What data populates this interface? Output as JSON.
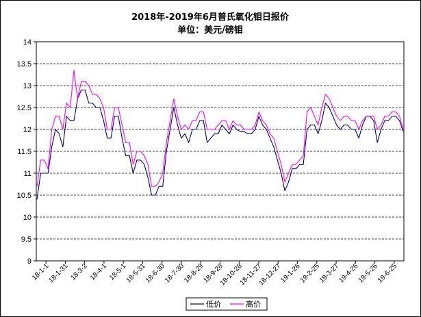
{
  "chart_data": {
    "type": "line",
    "title": "2018年-2019年6月普氏氧化钼日报价",
    "subtitle": "单位：美元/磅钼",
    "ylim": [
      9,
      14
    ],
    "yticks": [
      9,
      9.5,
      10,
      10.5,
      11,
      11.5,
      12,
      12.5,
      13,
      13.5,
      14
    ],
    "xtick_labels": [
      "18-1-1",
      "18-1-31",
      "18-3-2",
      "18-4-1",
      "18-5-1",
      "18-5-31",
      "18-6-30",
      "18-7-30",
      "18-8-29",
      "18-9-28",
      "18-10-28",
      "18-11-27",
      "18-12-27",
      "19-1-26",
      "19-2-25",
      "19-3-27",
      "19-4-26",
      "19-5-26",
      "19-6-25"
    ],
    "grid": "horizontal-dashed",
    "legend_position": "bottom-center",
    "series": [
      {
        "name": "低价",
        "color": "#000080",
        "values": [
          10.4,
          11.0,
          11.0,
          11.0,
          11.6,
          12.0,
          11.9,
          11.6,
          12.3,
          12.2,
          12.2,
          12.7,
          12.9,
          12.9,
          12.6,
          12.6,
          12.5,
          12.5,
          12.2,
          11.8,
          11.8,
          12.3,
          12.3,
          11.8,
          11.4,
          11.4,
          11.0,
          11.3,
          11.3,
          11.2,
          10.9,
          10.5,
          10.5,
          10.7,
          10.7,
          11.5,
          12.0,
          12.5,
          12.1,
          11.8,
          11.9,
          11.7,
          12.0,
          12.0,
          12.2,
          12.2,
          11.7,
          11.8,
          11.9,
          11.9,
          12.1,
          12.0,
          11.9,
          12.1,
          12.0,
          11.95,
          11.95,
          11.9,
          11.9,
          12.0,
          12.3,
          12.1,
          12.0,
          11.8,
          11.6,
          11.3,
          11.0,
          10.6,
          10.8,
          11.1,
          11.1,
          11.2,
          11.2,
          12.0,
          12.1,
          12.1,
          11.9,
          12.2,
          12.6,
          12.5,
          12.3,
          12.1,
          12.0,
          12.1,
          12.1,
          12.0,
          12.0,
          11.8,
          12.1,
          12.3,
          12.3,
          12.2,
          11.7,
          12.0,
          12.2,
          12.2,
          12.3,
          12.3,
          12.2,
          11.95
        ]
      },
      {
        "name": "高价",
        "color": "#ff00ff",
        "values": [
          10.7,
          11.3,
          11.3,
          11.1,
          12.0,
          12.3,
          12.3,
          12.0,
          12.6,
          12.5,
          13.35,
          12.7,
          13.1,
          13.1,
          13.0,
          12.8,
          12.8,
          12.7,
          12.5,
          12.0,
          12.0,
          12.5,
          12.5,
          12.1,
          11.7,
          11.7,
          11.2,
          11.5,
          11.5,
          11.4,
          11.2,
          10.7,
          10.7,
          10.8,
          11.0,
          11.7,
          12.2,
          12.7,
          12.3,
          12.0,
          12.1,
          12.0,
          12.2,
          12.2,
          12.4,
          12.4,
          12.0,
          12.0,
          12.0,
          12.1,
          12.2,
          12.2,
          12.0,
          12.2,
          12.1,
          12.1,
          12.0,
          12.0,
          12.0,
          12.1,
          12.4,
          12.2,
          12.1,
          11.9,
          11.8,
          11.5,
          11.2,
          10.8,
          11.0,
          11.2,
          11.2,
          11.3,
          11.4,
          12.4,
          12.5,
          12.3,
          12.1,
          12.5,
          12.8,
          12.7,
          12.5,
          12.3,
          12.2,
          12.3,
          12.3,
          12.2,
          12.2,
          12.0,
          12.2,
          12.3,
          12.3,
          12.3,
          12.0,
          12.1,
          12.3,
          12.3,
          12.4,
          12.4,
          12.3,
          12.0
        ]
      }
    ]
  }
}
